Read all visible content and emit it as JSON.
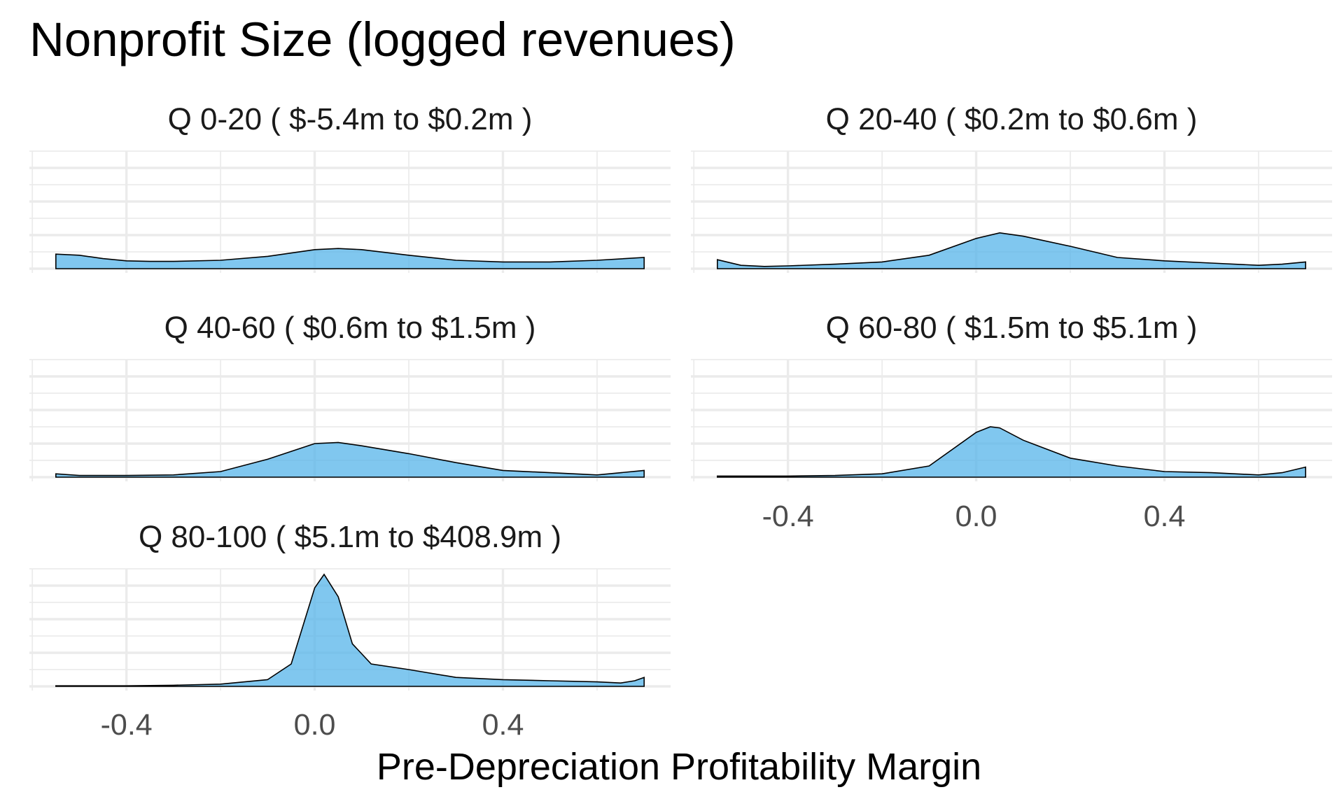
{
  "chart_data": {
    "type": "area",
    "title": "Nonprofit Size (logged revenues)",
    "xlabel": "Pre-Depreciation Profitability Margin",
    "ylabel": "",
    "xlim": [
      -0.55,
      0.7
    ],
    "x_ticks": [
      -0.4,
      0.0,
      0.4
    ],
    "x_tick_labels": [
      "-0.4",
      "0.0",
      "0.4"
    ],
    "ylim": [
      0,
      1
    ],
    "grid": true,
    "fill_color": "#56B4E9",
    "facets": [
      {
        "label": "Q 0-20   ( $-5.4m to $0.2m )",
        "x": [
          -0.55,
          -0.5,
          -0.45,
          -0.4,
          -0.35,
          -0.3,
          -0.2,
          -0.1,
          0.0,
          0.05,
          0.1,
          0.2,
          0.3,
          0.4,
          0.5,
          0.6,
          0.7
        ],
        "y": [
          0.13,
          0.12,
          0.09,
          0.07,
          0.065,
          0.065,
          0.075,
          0.11,
          0.17,
          0.18,
          0.17,
          0.12,
          0.075,
          0.06,
          0.06,
          0.075,
          0.1
        ]
      },
      {
        "label": "Q 20-40   ( $0.2m to $0.6m )",
        "x": [
          -0.55,
          -0.5,
          -0.45,
          -0.4,
          -0.3,
          -0.2,
          -0.1,
          0.0,
          0.05,
          0.1,
          0.2,
          0.3,
          0.4,
          0.5,
          0.6,
          0.65,
          0.7
        ],
        "y": [
          0.08,
          0.03,
          0.02,
          0.025,
          0.04,
          0.06,
          0.12,
          0.27,
          0.32,
          0.29,
          0.2,
          0.1,
          0.07,
          0.05,
          0.03,
          0.04,
          0.06
        ]
      },
      {
        "label": "Q 40-60   ( $0.6m to $1.5m )",
        "x": [
          -0.55,
          -0.5,
          -0.4,
          -0.3,
          -0.2,
          -0.1,
          0.0,
          0.05,
          0.1,
          0.2,
          0.3,
          0.4,
          0.5,
          0.6,
          0.7
        ],
        "y": [
          0.03,
          0.015,
          0.015,
          0.02,
          0.05,
          0.16,
          0.3,
          0.31,
          0.28,
          0.21,
          0.13,
          0.06,
          0.04,
          0.02,
          0.06
        ]
      },
      {
        "label": "Q 60-80   ( $1.5m to $5.1m )",
        "x": [
          -0.55,
          -0.4,
          -0.3,
          -0.2,
          -0.1,
          0.0,
          0.03,
          0.05,
          0.1,
          0.2,
          0.3,
          0.4,
          0.5,
          0.6,
          0.65,
          0.7
        ],
        "y": [
          0.01,
          0.01,
          0.015,
          0.03,
          0.1,
          0.4,
          0.45,
          0.44,
          0.33,
          0.17,
          0.1,
          0.05,
          0.04,
          0.02,
          0.04,
          0.09
        ]
      },
      {
        "label": "Q 80-100   ( $5.1m to $408.9m )",
        "x": [
          -0.55,
          -0.4,
          -0.3,
          -0.2,
          -0.1,
          -0.05,
          0.0,
          0.02,
          0.05,
          0.08,
          0.12,
          0.2,
          0.3,
          0.4,
          0.5,
          0.6,
          0.65,
          0.68,
          0.7
        ],
        "y": [
          0.005,
          0.005,
          0.01,
          0.02,
          0.06,
          0.2,
          0.88,
          1.0,
          0.8,
          0.38,
          0.2,
          0.15,
          0.08,
          0.06,
          0.05,
          0.04,
          0.03,
          0.05,
          0.08
        ]
      }
    ]
  }
}
